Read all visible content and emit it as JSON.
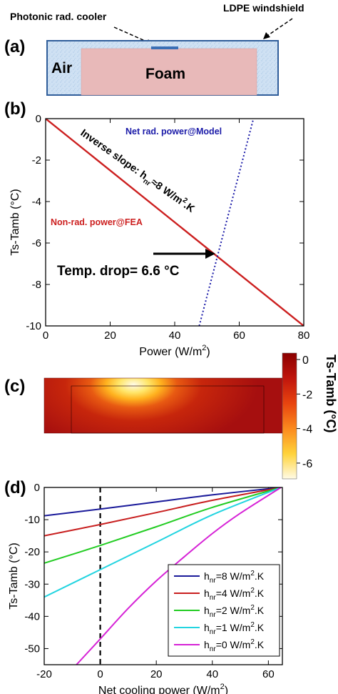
{
  "panel_a": {
    "label": "(a)",
    "callout_cooler": "Photonic rad. cooler",
    "callout_windshield": "LDPE windshield",
    "air_label": "Air",
    "foam_label": "Foam"
  },
  "panel_b": {
    "label": "(b)",
    "annotation_model": "Net rad. power@Model",
    "annotation_fea": "Non-rad. power@FEA",
    "annotation_slope_prefix": "Inverse slope: h",
    "annotation_slope_sub": "nr",
    "annotation_slope_mid": "≈8 W/m",
    "annotation_slope_sup": "2",
    "annotation_slope_suffix": ".K",
    "annotation_drop": "Temp. drop= 6.6 °C"
  },
  "panel_c": {
    "label": "(c)",
    "colorbar_title": "Ts-Tamb (°C)",
    "colorbar_ticks": [
      "0",
      "-2",
      "-4",
      "-6"
    ],
    "colorbar_values": [
      0,
      -2,
      -4,
      -6
    ]
  },
  "panel_d": {
    "label": "(d)"
  },
  "chart_data": [
    {
      "panel": "b",
      "type": "line",
      "xlabel_main": "Power (W/m",
      "xlabel_sup": "2",
      "xlabel_end": ")",
      "ylabel": "Ts-Tamb (°C)",
      "xlim": [
        0,
        80
      ],
      "ylim": [
        -10,
        0
      ],
      "xticks": [
        0,
        20,
        40,
        60,
        80
      ],
      "yticks": [
        0,
        -2,
        -4,
        -6,
        -8,
        -10
      ],
      "series": [
        {
          "name": "Non-rad. power@FEA",
          "color": "#cc1f1f",
          "style": "solid",
          "x": [
            0,
            80
          ],
          "y": [
            0,
            -10
          ]
        },
        {
          "name": "Net rad. power@Model",
          "color": "#1a1aa8",
          "style": "dotted",
          "x": [
            47.6,
            64.4
          ],
          "y": [
            -10,
            0
          ]
        }
      ],
      "marker_point": {
        "x": 52.8,
        "y": -6.6
      },
      "grid": false
    },
    {
      "panel": "d",
      "type": "line",
      "xlabel_main": "Net cooling power (W/m",
      "xlabel_sup": "2",
      "xlabel_end": ")",
      "ylabel": "Ts-Tamb (°C)",
      "xlim": [
        -20,
        65
      ],
      "ylim": [
        -55,
        0
      ],
      "xticks": [
        -20,
        0,
        20,
        40,
        60
      ],
      "yticks": [
        0,
        -10,
        -20,
        -30,
        -40,
        -50
      ],
      "vline_x": 0,
      "legend_position": "bottom-right",
      "series": [
        {
          "name_main": "h",
          "name_sub": "nr",
          "name_rest": "=8 W/m",
          "name_sup": "2",
          "name_end": ".K",
          "color": "#1a1a9a",
          "x": [
            -20,
            0,
            20,
            40,
            64.5
          ],
          "y": [
            -8.8,
            -6.7,
            -4.5,
            -2.3,
            0
          ]
        },
        {
          "name_main": "h",
          "name_sub": "nr",
          "name_rest": "=4 W/m",
          "name_sup": "2",
          "name_end": ".K",
          "color": "#c81e1e",
          "x": [
            -20,
            0,
            20,
            40,
            64.5
          ],
          "y": [
            -15.0,
            -11.5,
            -7.8,
            -4.0,
            0
          ]
        },
        {
          "name_main": "h",
          "name_sub": "nr",
          "name_rest": "=2 W/m",
          "name_sup": "2",
          "name_end": ".K",
          "color": "#22cc22",
          "x": [
            -20,
            0,
            20,
            40,
            64.5
          ],
          "y": [
            -23.5,
            -18.0,
            -12.2,
            -6.2,
            0
          ]
        },
        {
          "name_main": "h",
          "name_sub": "nr",
          "name_rest": "=1 W/m",
          "name_sup": "2",
          "name_end": ".K",
          "color": "#22d4e0",
          "x": [
            -20,
            0,
            20,
            40,
            64.5
          ],
          "y": [
            -34.0,
            -25.5,
            -17.0,
            -8.5,
            0
          ]
        },
        {
          "name_main": "h",
          "name_sub": "nr",
          "name_rest": "=0 W/m",
          "name_sup": "2",
          "name_end": ".K",
          "color": "#d622d6",
          "x": [
            -8.5,
            0,
            10,
            20,
            30,
            40,
            50,
            64.5
          ],
          "y": [
            -55,
            -47,
            -37.5,
            -29.0,
            -21.5,
            -14.3,
            -8.0,
            0
          ]
        }
      ],
      "grid": false
    }
  ]
}
